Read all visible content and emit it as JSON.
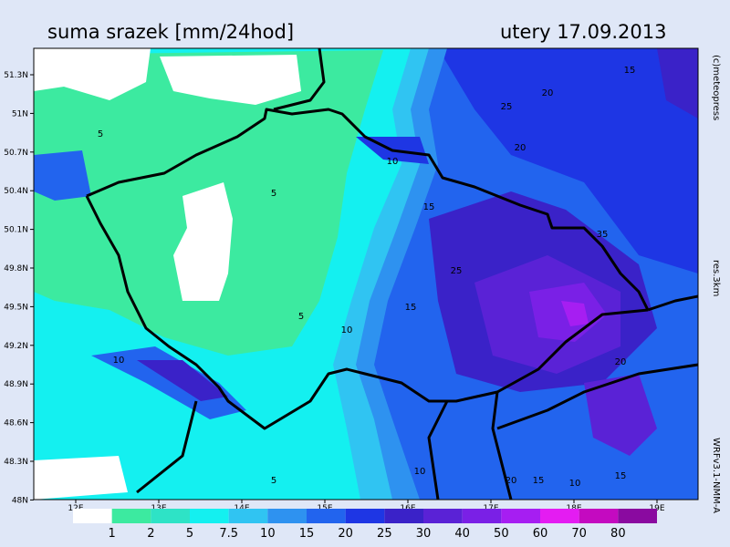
{
  "header": {
    "title": "suma srazek [mm/24hod]",
    "date": "utery 17.09.2013"
  },
  "side_labels": [
    "(c)meteopress",
    "res.3km",
    "WRFv3.1-NMM-A"
  ],
  "map": {
    "lat_labels": [
      "51.3N",
      "51N",
      "50.7N",
      "50.4N",
      "50.1N",
      "49.8N",
      "49.5N",
      "49.2N",
      "48.9N",
      "48.6N",
      "48.3N",
      "48N"
    ],
    "lon_labels": [
      "12E",
      "13E",
      "14E",
      "15E",
      "16E",
      "17E",
      "18E",
      "19E"
    ],
    "contour_labels": [
      5,
      5,
      5,
      10,
      15,
      10,
      15,
      20,
      25,
      15,
      20,
      25,
      35,
      20,
      10,
      15,
      20,
      15,
      10,
      5,
      10
    ]
  },
  "legend": {
    "levels": [
      1,
      2,
      5,
      7.5,
      10,
      15,
      20,
      25,
      30,
      40,
      50,
      60,
      70,
      80
    ],
    "colors": [
      "#ffffff",
      "#3ceaa0",
      "#2ee3c6",
      "#14f0f0",
      "#30c4f2",
      "#2e92f0",
      "#2264ee",
      "#1e36e4",
      "#3a22c8",
      "#5a22d6",
      "#7a20e6",
      "#a61ef2",
      "#e41cf2",
      "#c40ac0",
      "#8a0aa0"
    ]
  }
}
